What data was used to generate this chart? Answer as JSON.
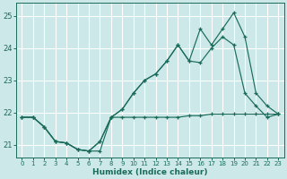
{
  "xlabel": "Humidex (Indice chaleur)",
  "ylabel": "",
  "bg_color": "#cce8e8",
  "grid_color": "#ffffff",
  "line_color": "#1a6b5a",
  "xlim": [
    -0.5,
    23.5
  ],
  "ylim": [
    20.6,
    25.4
  ],
  "yticks": [
    21,
    22,
    23,
    24,
    25
  ],
  "xticks": [
    0,
    1,
    2,
    3,
    4,
    5,
    6,
    7,
    8,
    9,
    10,
    11,
    12,
    13,
    14,
    15,
    16,
    17,
    18,
    19,
    20,
    21,
    22,
    23
  ],
  "series": [
    [
      21.85,
      21.85,
      21.55,
      21.1,
      21.05,
      20.85,
      20.8,
      20.8,
      21.85,
      21.85,
      21.85,
      21.85,
      21.85,
      21.85,
      21.85,
      21.9,
      21.9,
      21.95,
      21.95,
      21.95,
      21.95,
      21.95,
      21.95,
      21.95
    ],
    [
      21.85,
      21.85,
      21.55,
      21.1,
      21.05,
      20.85,
      20.8,
      21.1,
      21.85,
      22.1,
      22.6,
      23.0,
      23.2,
      23.6,
      24.1,
      23.6,
      23.55,
      24.0,
      24.35,
      24.1,
      22.6,
      22.2,
      21.85,
      21.95
    ],
    [
      21.85,
      21.85,
      21.55,
      21.1,
      21.05,
      20.85,
      20.8,
      21.1,
      21.85,
      22.1,
      22.6,
      23.0,
      23.2,
      23.6,
      24.1,
      23.6,
      24.6,
      24.1,
      24.6,
      25.1,
      24.35,
      22.6,
      22.2,
      21.95
    ]
  ]
}
